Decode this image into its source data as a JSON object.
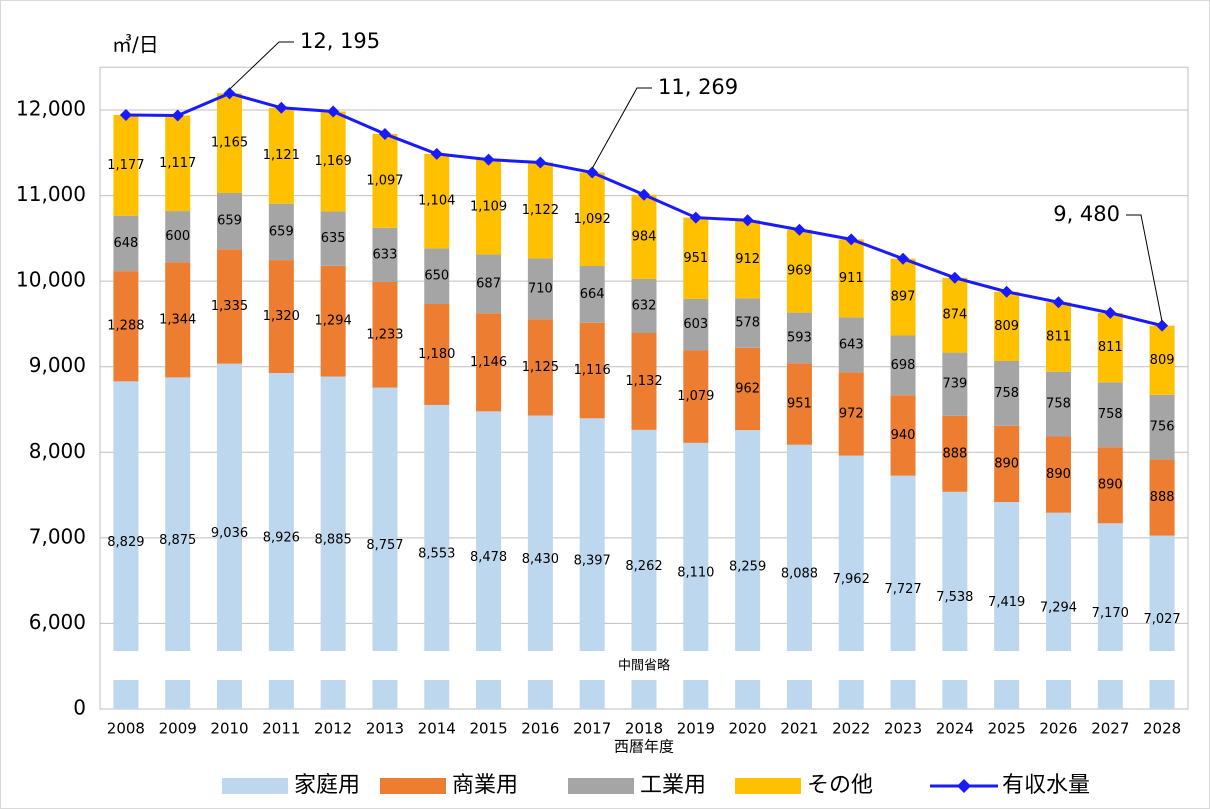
{
  "chart_data": {
    "type": "bar",
    "stacked": true,
    "y_label": "㎥/日",
    "x_label": "西暦年度",
    "axis_break_label": "中間省略",
    "categories": [
      "2008",
      "2009",
      "2010",
      "2011",
      "2012",
      "2013",
      "2014",
      "2015",
      "2016",
      "2017",
      "2018",
      "2019",
      "2020",
      "2021",
      "2022",
      "2023",
      "2024",
      "2025",
      "2026",
      "2027",
      "2028"
    ],
    "ylim": [
      0,
      12500
    ],
    "yticks": [
      0,
      {
        "value": 6000,
        "label": "6,000"
      },
      {
        "value": 7000,
        "label": "7,000"
      },
      {
        "value": 8000,
        "label": "8,000"
      },
      {
        "value": 9000,
        "label": "9,000"
      },
      {
        "value": 10000,
        "label": "10,000"
      },
      {
        "value": 11000,
        "label": "11,000"
      },
      {
        "value": 12000,
        "label": "12,000"
      }
    ],
    "grid": true,
    "legend": "bottom",
    "series": [
      {
        "name": "家庭用",
        "color": "#bdd7ee",
        "values": [
          8829,
          8875,
          9036,
          8926,
          8885,
          8757,
          8553,
          8478,
          8430,
          8397,
          8262,
          8110,
          8259,
          8088,
          7962,
          7727,
          7538,
          7419,
          7294,
          7170,
          7027
        ],
        "value_labels": [
          "8,829",
          "8,875",
          "9,036",
          "8,926",
          "8,885",
          "8,757",
          "8,553",
          "8,478",
          "8,430",
          "8,397",
          "8,262",
          "8,110",
          "8,259",
          "8,088",
          "7,962",
          "7,727",
          "7,538",
          "7,419",
          "7,294",
          "7,170",
          "7,027"
        ]
      },
      {
        "name": "商業用",
        "color": "#ed7d31",
        "values": [
          1288,
          1344,
          1335,
          1320,
          1294,
          1233,
          1180,
          1146,
          1125,
          1116,
          1132,
          1079,
          962,
          951,
          972,
          940,
          888,
          890,
          890,
          890,
          888
        ],
        "value_labels": [
          "1,288",
          "1,344",
          "1,335",
          "1,320",
          "1,294",
          "1,233",
          "1,180",
          "1,146",
          "1,125",
          "1,116",
          "1,132",
          "1,079",
          "962",
          "951",
          "972",
          "940",
          "888",
          "890",
          "890",
          "890",
          "888"
        ]
      },
      {
        "name": "工業用",
        "color": "#a5a5a5",
        "values": [
          648,
          600,
          659,
          659,
          635,
          633,
          650,
          687,
          710,
          664,
          632,
          603,
          578,
          593,
          643,
          698,
          739,
          758,
          758,
          758,
          756
        ],
        "value_labels": [
          "648",
          "600",
          "659",
          "659",
          "635",
          "633",
          "650",
          "687",
          "710",
          "664",
          "632",
          "603",
          "578",
          "593",
          "643",
          "698",
          "739",
          "758",
          "758",
          "758",
          "756"
        ]
      },
      {
        "name": "その他",
        "color": "#ffc000",
        "values": [
          1177,
          1117,
          1165,
          1121,
          1169,
          1097,
          1104,
          1109,
          1122,
          1092,
          984,
          951,
          912,
          969,
          911,
          897,
          874,
          809,
          811,
          811,
          809
        ],
        "value_labels": [
          "1,177",
          "1,117",
          "1,165",
          "1,121",
          "1,169",
          "1,097",
          "1,104",
          "1,109",
          "1,122",
          "1,092",
          "984",
          "951",
          "912",
          "969",
          "911",
          "897",
          "874",
          "809",
          "811",
          "811",
          "809"
        ]
      },
      {
        "name": "有収水量",
        "type": "line",
        "color": "#1a1aff",
        "values": [
          11942,
          11936,
          12195,
          12026,
          11983,
          11720,
          11487,
          11420,
          11387,
          11269,
          11010,
          10743,
          10711,
          10601,
          10488,
          10262,
          10039,
          9876,
          9753,
          9629,
          9480
        ],
        "value_labels": [
          null,
          null,
          "12, 195",
          null,
          null,
          null,
          null,
          null,
          null,
          "11, 269",
          null,
          null,
          null,
          null,
          null,
          null,
          null,
          null,
          null,
          null,
          "9, 480"
        ]
      }
    ]
  }
}
